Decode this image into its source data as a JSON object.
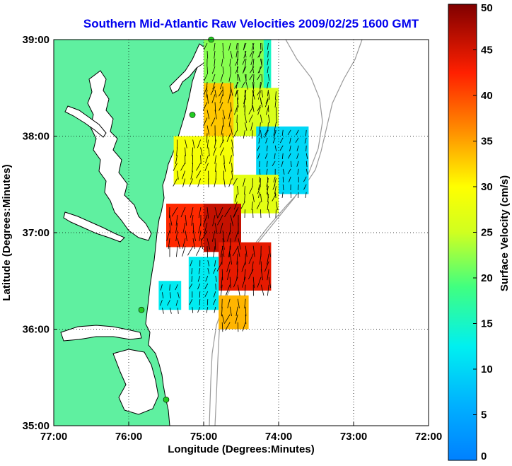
{
  "title": "Southern Mid-Atlantic Raw Velocities 2009/02/25 1600 GMT",
  "map": {
    "xlabel": "Longitude (Degrees:Minutes)",
    "ylabel": "Latitude (Degrees:Minutes)",
    "lon_range": [
      -77,
      -72
    ],
    "lat_range": [
      35,
      39
    ],
    "lon_ticks": [
      {
        "value": -77,
        "label": "77:00"
      },
      {
        "value": -76,
        "label": "76:00"
      },
      {
        "value": -75,
        "label": "75:00"
      },
      {
        "value": -74,
        "label": "74:00"
      },
      {
        "value": -73,
        "label": "73:00"
      },
      {
        "value": -72,
        "label": "72:00"
      }
    ],
    "lat_ticks": [
      {
        "value": 35,
        "label": "35:00"
      },
      {
        "value": 36,
        "label": "36:00"
      },
      {
        "value": 37,
        "label": "37:00"
      },
      {
        "value": 38,
        "label": "38:00"
      },
      {
        "value": 39,
        "label": "39:00"
      }
    ],
    "grid": "dotted",
    "land_color": "#5ff0a0",
    "coastline_color": "#000000",
    "bathymetry_color": "#999999",
    "station_color": "#22cc22",
    "stations": [
      {
        "lon": -74.9,
        "lat": 39.0
      },
      {
        "lon": -75.15,
        "lat": 38.22
      },
      {
        "lon": -75.83,
        "lat": 36.2
      },
      {
        "lon": -75.5,
        "lat": 35.27
      }
    ]
  },
  "colorbar": {
    "label": "Surface Velocity (cm/s)",
    "min": 0,
    "max": 50,
    "ticks": [
      "0",
      "5",
      "10",
      "15",
      "20",
      "25",
      "30",
      "35",
      "40",
      "45",
      "50"
    ],
    "colormap": "jet"
  },
  "chart_data": {
    "type": "heatmap",
    "title": "Southern Mid-Atlantic Raw Velocities 2009/02/25 1600 GMT",
    "xlabel": "Longitude (Degrees:Minutes)",
    "ylabel": "Latitude (Degrees:Minutes)",
    "xlim": [
      -77,
      -72
    ],
    "ylim": [
      35,
      39
    ],
    "value_label": "Surface Velocity (cm/s)",
    "value_range": [
      0,
      50
    ],
    "regions": [
      {
        "lon": [
          -74.6,
          -74.1
        ],
        "lat": [
          38.3,
          39.0
        ],
        "speed": 15
      },
      {
        "lon": [
          -75.0,
          -74.2
        ],
        "lat": [
          38.4,
          39.0
        ],
        "speed": 22
      },
      {
        "lon": [
          -75.0,
          -74.6
        ],
        "lat": [
          38.0,
          38.55
        ],
        "speed": 33
      },
      {
        "lon": [
          -74.6,
          -74.0
        ],
        "lat": [
          38.0,
          38.5
        ],
        "speed": 26
      },
      {
        "lon": [
          -74.3,
          -73.6
        ],
        "lat": [
          37.4,
          38.1
        ],
        "speed": 10
      },
      {
        "lon": [
          -75.4,
          -74.6
        ],
        "lat": [
          37.5,
          38.0
        ],
        "speed": 29
      },
      {
        "lon": [
          -74.6,
          -74.0
        ],
        "lat": [
          37.2,
          37.6
        ],
        "speed": 27
      },
      {
        "lon": [
          -75.5,
          -75.0
        ],
        "lat": [
          36.85,
          37.3
        ],
        "speed": 42
      },
      {
        "lon": [
          -75.0,
          -74.5
        ],
        "lat": [
          36.8,
          37.3
        ],
        "speed": 46
      },
      {
        "lon": [
          -74.8,
          -74.1
        ],
        "lat": [
          36.4,
          36.9
        ],
        "speed": 44
      },
      {
        "lon": [
          -75.2,
          -74.8
        ],
        "lat": [
          36.2,
          36.75
        ],
        "speed": 12
      },
      {
        "lon": [
          -74.8,
          -74.4
        ],
        "lat": [
          36.0,
          36.35
        ],
        "speed": 34
      },
      {
        "lon": [
          -75.6,
          -75.3
        ],
        "lat": [
          36.2,
          36.5
        ],
        "speed": 12
      }
    ]
  }
}
